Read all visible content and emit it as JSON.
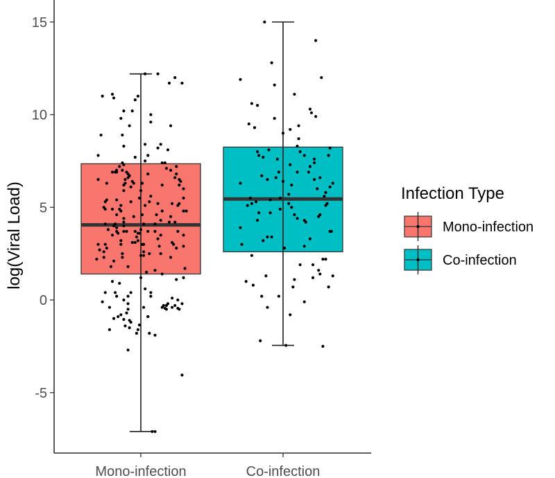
{
  "chart_data": {
    "type": "boxplot",
    "ylabel": "log(Viral Load)",
    "ylim": [
      -8,
      16
    ],
    "y_ticks": [
      -5,
      0,
      5,
      10,
      15
    ],
    "y_tick_labels": [
      "-5",
      "0",
      "5",
      "10",
      "15"
    ],
    "categories": [
      "Mono-infection",
      "Co-infection"
    ],
    "grid": false,
    "legend": {
      "title": "Infection Type",
      "placement": "right",
      "entries": [
        "Mono-infection",
        "Co-infection"
      ]
    },
    "colors": [
      "#F8766D",
      "#00BFC4"
    ],
    "boxes": [
      {
        "category": "Mono-infection",
        "whisker_low": -7.1,
        "q1": 1.4,
        "median": 4.05,
        "q3": 7.35,
        "whisker_high": 12.2
      },
      {
        "category": "Co-infection",
        "whisker_low": -2.45,
        "q1": 2.6,
        "median": 5.45,
        "q3": 8.25,
        "whisker_high": 15.0
      }
    ],
    "points": [
      [
        [
          -0.14,
          3.0
        ],
        [
          -0.17,
          7.0
        ],
        [
          -0.14,
          9.8
        ],
        [
          0.07,
          9.6
        ],
        [
          -0.2,
          4.9
        ],
        [
          -0.12,
          10.2
        ],
        [
          0.21,
          4.5
        ],
        [
          0.19,
          8.1
        ],
        [
          -0.08,
          9.4
        ],
        [
          0.03,
          7.5
        ],
        [
          -0.26,
          2.6
        ],
        [
          -0.19,
          2.1
        ],
        [
          -0.2,
          3.5
        ],
        [
          0.25,
          6.8
        ],
        [
          -0.01,
          3.6
        ],
        [
          -0.11,
          -1.4
        ],
        [
          0.15,
          6.2
        ],
        [
          0.32,
          4.8
        ],
        [
          0.29,
          -4.05
        ],
        [
          -0.01,
          5.5
        ],
        [
          -0.01,
          -1.35
        ],
        [
          0.03,
          8.4
        ],
        [
          -0.15,
          0.9
        ],
        [
          0.0,
          1.2
        ],
        [
          0.07,
          5.6
        ],
        [
          0.15,
          7.4
        ],
        [
          0.15,
          1.4
        ],
        [
          -0.3,
          6.5
        ],
        [
          -0.2,
          11.1
        ],
        [
          -0.13,
          8.9
        ],
        [
          0.01,
          4.6
        ],
        [
          -0.24,
          5.4
        ],
        [
          -0.03,
          3.4
        ],
        [
          0.13,
          2.9
        ],
        [
          -0.12,
          4.4
        ],
        [
          0.2,
          11.7
        ],
        [
          -0.07,
          6.1
        ],
        [
          -0.12,
          4.2
        ],
        [
          -0.1,
          -0.7
        ],
        [
          0.3,
          5.5
        ],
        [
          -0.14,
          4.8
        ],
        [
          -0.09,
          -2.7
        ],
        [
          0.06,
          -1.8
        ],
        [
          0.2,
          4.2
        ],
        [
          -0.25,
          3.0
        ],
        [
          0.1,
          4.1
        ],
        [
          -0.24,
          6.3
        ],
        [
          -0.13,
          7.4
        ],
        [
          0.3,
          1.2
        ],
        [
          -0.09,
          6.8
        ],
        [
          0.03,
          5.1
        ],
        [
          -0.07,
          -1.2
        ],
        [
          0.1,
          3.7
        ],
        [
          -0.25,
          4.1
        ],
        [
          -0.02,
          3.2
        ],
        [
          -0.31,
          2.2
        ],
        [
          -0.26,
          2.3
        ],
        [
          0.31,
          1.7
        ],
        [
          -0.21,
          1.8
        ],
        [
          0.21,
          9.4
        ],
        [
          0.01,
          6.3
        ],
        [
          0.03,
          12.2
        ],
        [
          0.15,
          4.8
        ],
        [
          0.22,
          -0.4
        ],
        [
          0.1,
          1.6
        ],
        [
          -0.19,
          4.0
        ],
        [
          -0.19,
          10.9
        ],
        [
          0.08,
          -7.1
        ],
        [
          -0.29,
          2.7
        ],
        [
          0.14,
          8.4
        ],
        [
          0.16,
          -0.3
        ],
        [
          -0.18,
          0.4
        ],
        [
          -0.02,
          11.0
        ],
        [
          -0.14,
          3.2
        ],
        [
          -0.07,
          0.4
        ],
        [
          0.02,
          -0.4
        ],
        [
          0.22,
          5.2
        ],
        [
          -0.2,
          6.9
        ],
        [
          -0.12,
          -1.05
        ],
        [
          -0.16,
          -0.9
        ],
        [
          -0.17,
          5.4
        ],
        [
          0.1,
          4.1
        ],
        [
          -0.14,
          5.1
        ],
        [
          0.29,
          11.7
        ],
        [
          -0.14,
          -0.8
        ],
        [
          -0.08,
          -1.5
        ],
        [
          0.02,
          2.6
        ],
        [
          -0.04,
          3.7
        ],
        [
          0.0,
          3.8
        ],
        [
          0.03,
          0.6
        ],
        [
          0.18,
          -0.5
        ],
        [
          0.24,
          12.0
        ],
        [
          -0.06,
          3.1
        ],
        [
          -0.22,
          -1.6
        ],
        [
          -0.05,
          4.5
        ],
        [
          -0.06,
          6.4
        ],
        [
          -0.09,
          0.2
        ],
        [
          0.12,
          3.3
        ],
        [
          0.05,
          -0.9
        ],
        [
          -0.15,
          7.2
        ],
        [
          -0.25,
          0.4
        ],
        [
          -0.27,
          -0.1
        ],
        [
          0.22,
          3.1
        ],
        [
          -0.16,
          3.6
        ],
        [
          -0.09,
          6.6
        ],
        [
          -0.09,
          1.8
        ],
        [
          0.06,
          5.3
        ],
        [
          -0.15,
          4.9
        ],
        [
          -0.12,
          5.9
        ],
        [
          -0.17,
          3.7
        ],
        [
          0.14,
          4.3
        ],
        [
          0.3,
          3.5
        ],
        [
          0.17,
          -0.45
        ],
        [
          0.26,
          5.1
        ],
        [
          -0.11,
          6.3
        ],
        [
          -0.06,
          10.2
        ],
        [
          0.0,
          2.4
        ],
        [
          -0.09,
          -0.5
        ],
        [
          -0.28,
          8.9
        ],
        [
          -0.08,
          -1.1
        ],
        [
          -0.13,
          2.5
        ],
        [
          0.18,
          -0.3
        ],
        [
          0.25,
          7.2
        ],
        [
          -0.24,
          2.8
        ],
        [
          -0.04,
          7.7
        ],
        [
          -0.17,
          0.2
        ],
        [
          0.0,
          5.9
        ],
        [
          -0.04,
          10.8
        ],
        [
          -0.26,
          5.0
        ],
        [
          0.04,
          1.5
        ],
        [
          -0.12,
          6.2
        ],
        [
          -0.04,
          3.1
        ],
        [
          0.07,
          10.0
        ],
        [
          0.1,
          3.7
        ],
        [
          0.14,
          3.5
        ],
        [
          0.05,
          6.8
        ],
        [
          0.11,
          4.6
        ],
        [
          -0.13,
          2.3
        ],
        [
          0.02,
          2.4
        ],
        [
          0.26,
          0.0
        ],
        [
          0.24,
          4.2
        ],
        [
          -0.3,
          3.0
        ],
        [
          0.22,
          0.1
        ],
        [
          -0.22,
          -0.4
        ],
        [
          -0.19,
          -1.0
        ],
        [
          0.07,
          0.2
        ],
        [
          0.12,
          5.2
        ],
        [
          -0.25,
          4.9
        ],
        [
          -0.17,
          3.9
        ],
        [
          0.05,
          3.7
        ],
        [
          -0.17,
          6.9
        ],
        [
          -0.09,
          -0.2
        ],
        [
          0.06,
          2.5
        ],
        [
          -0.02,
          3.6
        ],
        [
          0.07,
          0.4
        ],
        [
          0.05,
          -0.9
        ],
        [
          0.3,
          6.0
        ],
        [
          0.05,
          7.8
        ],
        [
          -0.18,
          4.1
        ],
        [
          -0.12,
          4.0
        ],
        [
          0.29,
          -0.2
        ],
        [
          -0.25,
          5.3
        ],
        [
          -0.3,
          7.8
        ],
        [
          0.02,
          4.1
        ],
        [
          0.27,
          6.2
        ],
        [
          0.3,
          4.8
        ],
        [
          0.17,
          7.4
        ],
        [
          0.27,
          5.2
        ],
        [
          0.27,
          6.5
        ],
        [
          -0.05,
          6.3
        ],
        [
          -0.02,
          -1.6
        ],
        [
          -0.17,
          4.6
        ],
        [
          -0.23,
          3.8
        ],
        [
          0.3,
          2.9
        ],
        [
          -0.1,
          6.9
        ],
        [
          0.01,
          3.0
        ],
        [
          0.15,
          -0.4
        ],
        [
          0.25,
          2.8
        ],
        [
          -0.12,
          0.0
        ],
        [
          0.12,
          8.2
        ],
        [
          0.26,
          3.7
        ],
        [
          -0.27,
          11.0
        ],
        [
          -0.18,
          6.9
        ],
        [
          -0.2,
          1.0
        ],
        [
          -0.03,
          -1.8
        ],
        [
          0.26,
          -0.45
        ],
        [
          0.21,
          2.3
        ],
        [
          0.21,
          7.0
        ],
        [
          0.25,
          1.1
        ],
        [
          0.12,
          12.2
        ],
        [
          0.27,
          -0.5
        ],
        [
          0.28,
          6.4
        ],
        [
          0.18,
          7.1
        ],
        [
          -0.11,
          6.5
        ],
        [
          0.23,
          3.0
        ],
        [
          -0.12,
          8.3
        ],
        [
          0.14,
          2.5
        ],
        [
          -0.07,
          5.3
        ],
        [
          -0.1,
          3.7
        ],
        [
          0.1,
          -1.9
        ],
        [
          0.24,
          -0.3
        ],
        [
          0.24,
          6.6
        ],
        [
          -0.12,
          3.7
        ],
        [
          -0.12,
          7.3
        ],
        [
          -0.08,
          6.7
        ],
        [
          -0.13,
          7.0
        ],
        [
          0.02,
          3.0
        ],
        [
          0.19,
          -0.2
        ],
        [
          0.1,
          -7.1
        ]
      ],
      [
        [
          -0.3,
          11.9
        ],
        [
          0.08,
          11.1
        ],
        [
          -0.13,
          15.0
        ],
        [
          -0.06,
          11.6
        ],
        [
          -0.08,
          12.8
        ],
        [
          0.23,
          14.0
        ],
        [
          0.27,
          12.0
        ],
        [
          -0.2,
          9.3
        ],
        [
          -0.18,
          10.5
        ],
        [
          0.19,
          10.3
        ],
        [
          0.33,
          8.2
        ],
        [
          0.11,
          9.4
        ],
        [
          0.23,
          9.9
        ],
        [
          0.2,
          10.1
        ],
        [
          -0.22,
          10.6
        ],
        [
          0.05,
          9.2
        ],
        [
          0.22,
          7.6
        ],
        [
          -0.3,
          6.3
        ],
        [
          -0.03,
          6.9
        ],
        [
          -0.1,
          8.1
        ],
        [
          0.05,
          7.3
        ],
        [
          0.12,
          8.0
        ],
        [
          0.22,
          7.4
        ],
        [
          0.1,
          6.9
        ],
        [
          0.32,
          7.8
        ],
        [
          0.26,
          6.6
        ],
        [
          -0.15,
          6.7
        ],
        [
          0.06,
          6.2
        ],
        [
          0.0,
          6.4
        ],
        [
          -0.22,
          5.2
        ],
        [
          -0.02,
          5.5
        ],
        [
          0.31,
          5.2
        ],
        [
          0.24,
          6.0
        ],
        [
          0.18,
          6.9
        ],
        [
          0.35,
          6.3
        ],
        [
          0.15,
          4.3
        ],
        [
          0.3,
          5.1
        ],
        [
          -0.02,
          4.9
        ],
        [
          -0.19,
          5.3
        ],
        [
          0.04,
          5.7
        ],
        [
          0.26,
          4.6
        ],
        [
          -0.3,
          3.9
        ],
        [
          0.1,
          4.4
        ],
        [
          -0.18,
          4.3
        ],
        [
          -0.09,
          4.7
        ],
        [
          0.33,
          3.7
        ],
        [
          -0.08,
          3.4
        ],
        [
          0.34,
          3.7
        ],
        [
          -0.11,
          3.4
        ],
        [
          0.15,
          2.9
        ],
        [
          -0.14,
          3.2
        ],
        [
          0.01,
          2.8
        ],
        [
          -0.29,
          3.0
        ],
        [
          0.28,
          2.2
        ],
        [
          -0.22,
          2.4
        ],
        [
          0.21,
          1.2
        ],
        [
          0.35,
          1.3
        ],
        [
          0.25,
          1.6
        ],
        [
          0.32,
          0.7
        ],
        [
          -0.21,
          0.8
        ],
        [
          0.08,
          1.1
        ],
        [
          -0.26,
          1.0
        ],
        [
          -0.12,
          1.3
        ],
        [
          0.26,
          1.4
        ],
        [
          -0.03,
          0.2
        ],
        [
          0.12,
          1.9
        ],
        [
          -0.15,
          0.2
        ],
        [
          0.07,
          0.7
        ],
        [
          0.15,
          -0.1
        ],
        [
          -0.11,
          -0.4
        ],
        [
          0.05,
          -0.8
        ],
        [
          0.28,
          -2.5
        ],
        [
          -0.16,
          -2.2
        ],
        [
          0.02,
          -2.45
        ],
        [
          0.25,
          4.5
        ],
        [
          -0.04,
          7.6
        ],
        [
          0.11,
          8.7
        ],
        [
          -0.23,
          5.5
        ],
        [
          0.19,
          3.3
        ],
        [
          0.3,
          5.8
        ],
        [
          0.15,
          7.8
        ],
        [
          0.0,
          9.0
        ],
        [
          0.06,
          5.0
        ],
        [
          -0.18,
          8.0
        ],
        [
          0.29,
          5.6
        ],
        [
          0.1,
          8.3
        ],
        [
          -0.24,
          9.5
        ],
        [
          -0.05,
          6.6
        ],
        [
          0.22,
          6.5
        ],
        [
          0.04,
          5.2
        ],
        [
          0.16,
          4.2
        ],
        [
          -0.09,
          5.4
        ],
        [
          -0.11,
          6.5
        ],
        [
          -0.17,
          7.8
        ],
        [
          0.08,
          4.6
        ],
        [
          0.19,
          7.2
        ],
        [
          -0.06,
          9.8
        ],
        [
          0.21,
          1.9
        ],
        [
          -0.17,
          4.7
        ],
        [
          -0.14,
          7.7
        ],
        [
          0.3,
          2.2
        ],
        [
          -0.25,
          5.1
        ],
        [
          0.33,
          6.1
        ]
      ]
    ]
  }
}
